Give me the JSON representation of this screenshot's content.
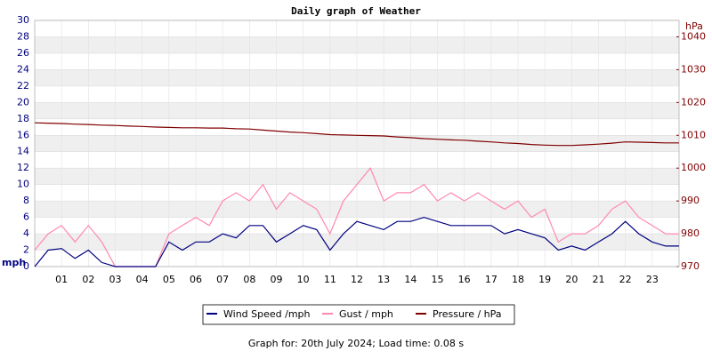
{
  "chart_data": {
    "type": "line",
    "title": "Daily graph of Weather",
    "y_label": "mph",
    "y2_label": "hPa",
    "footer": "Graph for: 20th July 2024; Load time: 0.08 s",
    "x": [
      0,
      0.5,
      1,
      1.5,
      2,
      2.5,
      3,
      3.5,
      4,
      4.5,
      5,
      5.5,
      6,
      6.5,
      7,
      7.5,
      8,
      8.5,
      9,
      9.5,
      10,
      10.5,
      11,
      11.5,
      12,
      12.5,
      13,
      13.5,
      14,
      14.5,
      15,
      15.5,
      16,
      16.5,
      17,
      17.5,
      18,
      18.5,
      19,
      19.5,
      20,
      20.5,
      21,
      21.5,
      22,
      22.5,
      23,
      23.5,
      24
    ],
    "xlim": [
      0,
      24
    ],
    "xticks": [
      {
        "value": 1,
        "label": "01"
      },
      {
        "value": 2,
        "label": "02"
      },
      {
        "value": 3,
        "label": "03"
      },
      {
        "value": 4,
        "label": "04"
      },
      {
        "value": 5,
        "label": "05"
      },
      {
        "value": 6,
        "label": "06"
      },
      {
        "value": 7,
        "label": "07"
      },
      {
        "value": 8,
        "label": "08"
      },
      {
        "value": 9,
        "label": "09"
      },
      {
        "value": 10,
        "label": "10"
      },
      {
        "value": 11,
        "label": "11"
      },
      {
        "value": 12,
        "label": "12"
      },
      {
        "value": 13,
        "label": "13"
      },
      {
        "value": 14,
        "label": "14"
      },
      {
        "value": 15,
        "label": "15"
      },
      {
        "value": 16,
        "label": "16"
      },
      {
        "value": 17,
        "label": "17"
      },
      {
        "value": 18,
        "label": "18"
      },
      {
        "value": 19,
        "label": "19"
      },
      {
        "value": 20,
        "label": "20"
      },
      {
        "value": 21,
        "label": "21"
      },
      {
        "value": 22,
        "label": "22"
      },
      {
        "value": 23,
        "label": "23"
      }
    ],
    "ylim": [
      0,
      30
    ],
    "yticks": [
      0,
      2,
      4,
      6,
      8,
      10,
      12,
      14,
      16,
      18,
      20,
      22,
      24,
      26,
      28,
      30
    ],
    "y2lim": [
      970,
      1045
    ],
    "y2ticks": [
      970,
      980,
      990,
      1000,
      1010,
      1020,
      1030,
      1040
    ],
    "grid": true,
    "series": [
      {
        "name": "Wind Speed /mph",
        "color": "#000080",
        "values": [
          0,
          2,
          2.2,
          1,
          2,
          0.5,
          0,
          0,
          0,
          0,
          3,
          2,
          3,
          3,
          4,
          3.5,
          5,
          5,
          3,
          4,
          5,
          4.5,
          2,
          4,
          5.5,
          5,
          4.5,
          5.5,
          5.5,
          6,
          5.5,
          5,
          5,
          5,
          5,
          4,
          4.5,
          4,
          3.5,
          2,
          2.5,
          2,
          3,
          4,
          5.5,
          4,
          3,
          2.5,
          2.5
        ]
      },
      {
        "name": "Gust / mph",
        "color": "#ff88b0",
        "values": [
          2,
          4,
          5,
          3,
          5,
          3,
          0,
          0,
          0,
          0,
          4,
          5,
          6,
          5,
          8,
          9,
          8,
          10,
          7,
          9,
          8,
          7,
          4,
          8,
          10,
          12,
          8,
          9,
          9,
          10,
          8,
          9,
          8,
          9,
          8,
          7,
          8,
          6,
          7,
          3,
          4,
          4,
          5,
          7,
          8,
          6,
          5,
          4,
          4
        ]
      },
      {
        "name": "Pressure / hPa",
        "color": "#800000",
        "axis": "y2",
        "values": [
          1013.8,
          1013.7,
          1013.6,
          1013.4,
          1013.3,
          1013.1,
          1013.0,
          1012.8,
          1012.7,
          1012.5,
          1012.4,
          1012.3,
          1012.3,
          1012.2,
          1012.2,
          1012.0,
          1011.9,
          1011.6,
          1011.3,
          1011.0,
          1010.8,
          1010.5,
          1010.2,
          1010.1,
          1010.0,
          1009.9,
          1009.8,
          1009.5,
          1009.3,
          1009.0,
          1008.8,
          1008.6,
          1008.5,
          1008.2,
          1008.0,
          1007.7,
          1007.5,
          1007.2,
          1007.0,
          1006.9,
          1006.9,
          1007.1,
          1007.3,
          1007.6,
          1008.0,
          1007.9,
          1007.8,
          1007.7,
          1007.7
        ]
      }
    ]
  }
}
